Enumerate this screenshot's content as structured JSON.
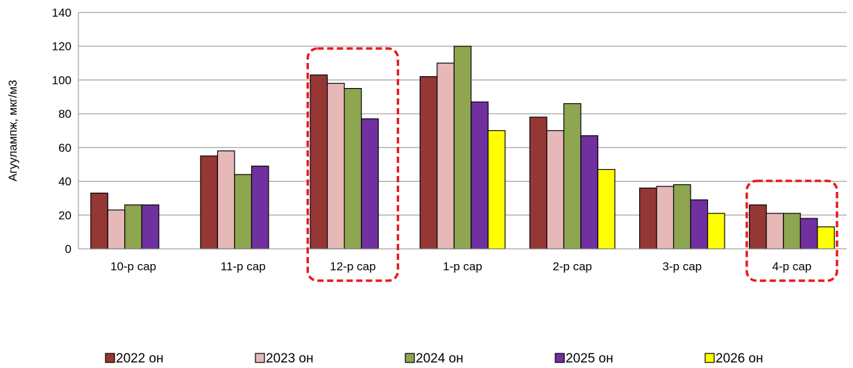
{
  "chart_data": {
    "type": "bar",
    "title": "",
    "xlabel": "",
    "ylabel": "Агуулампж, мкг/м3",
    "ylim": [
      0,
      140
    ],
    "yticks": [
      0,
      20,
      40,
      60,
      80,
      100,
      120,
      140
    ],
    "grid": true,
    "legend_position": "bottom",
    "categories": [
      "10-р сар",
      "11-р сар",
      "12-р сар",
      "1-р сар",
      "2-р сар",
      "3-р сар",
      "4-р сар"
    ],
    "series": [
      {
        "name": "2022 он",
        "color": "#953735",
        "values": [
          33,
          55,
          103,
          102,
          78,
          36,
          26
        ]
      },
      {
        "name": "2023 он",
        "color": "#E6B9B8",
        "values": [
          23,
          58,
          98,
          110,
          70,
          37,
          21
        ]
      },
      {
        "name": "2024 он",
        "color": "#8DA64F",
        "values": [
          26,
          44,
          95,
          120,
          86,
          38,
          21
        ]
      },
      {
        "name": "2025 он",
        "color": "#7030A0",
        "values": [
          26,
          49,
          77,
          87,
          67,
          29,
          18
        ]
      },
      {
        "name": "2026 он",
        "color": "#FFFF00",
        "values": [
          null,
          null,
          null,
          70,
          47,
          21,
          13
        ]
      }
    ],
    "highlighted_categories": [
      "12-р сар",
      "4-р сар"
    ],
    "highlight_color": "#E8191C"
  }
}
